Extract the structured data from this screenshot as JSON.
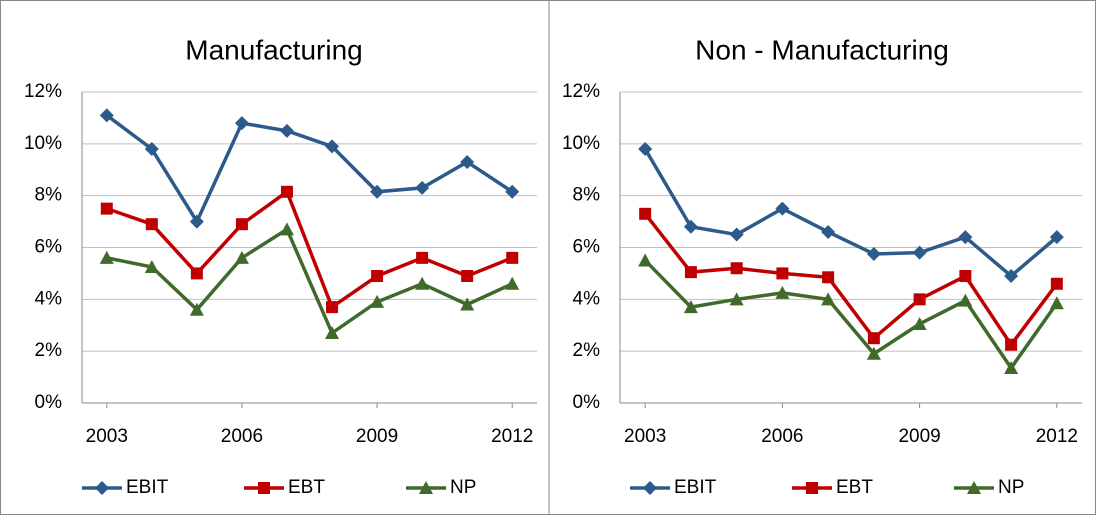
{
  "chart_data": [
    {
      "type": "line",
      "title": "Manufacturing",
      "x": [
        2003,
        2004,
        2005,
        2006,
        2007,
        2008,
        2009,
        2010,
        2011,
        2012
      ],
      "series": [
        {
          "name": "EBIT",
          "color": "#2c5a8b",
          "marker": "diamond",
          "values": [
            11.1,
            9.8,
            7.0,
            10.8,
            10.5,
            9.9,
            8.15,
            8.3,
            9.3,
            8.15
          ]
        },
        {
          "name": "EBT",
          "color": "#c00000",
          "marker": "square",
          "values": [
            7.5,
            6.9,
            5.0,
            6.9,
            8.15,
            3.7,
            4.9,
            5.6,
            4.9,
            5.6
          ]
        },
        {
          "name": "NP",
          "color": "#3f6a2a",
          "marker": "triangle",
          "values": [
            5.6,
            5.25,
            3.6,
            5.6,
            6.7,
            2.7,
            3.9,
            4.6,
            3.8,
            4.6
          ]
        }
      ],
      "xlim": [
        2002.45,
        2012.55
      ],
      "xticks": [
        2003,
        2006,
        2009,
        2012
      ],
      "ylim": [
        0,
        12
      ],
      "yticks": [
        {
          "value": 0,
          "label": "0%"
        },
        {
          "value": 2,
          "label": "2%"
        },
        {
          "value": 4,
          "label": "4%"
        },
        {
          "value": 6,
          "label": "6%"
        },
        {
          "value": 8,
          "label": "8%"
        },
        {
          "value": 10,
          "label": "10%"
        },
        {
          "value": 12,
          "label": "12%"
        }
      ],
      "grid": true,
      "legend": "bottom"
    },
    {
      "type": "line",
      "title": "Non - Manufacturing",
      "x": [
        2003,
        2004,
        2005,
        2006,
        2007,
        2008,
        2009,
        2010,
        2011,
        2012
      ],
      "series": [
        {
          "name": "EBIT",
          "color": "#2c5a8b",
          "marker": "diamond",
          "values": [
            9.8,
            6.8,
            6.5,
            7.5,
            6.6,
            5.75,
            5.8,
            6.4,
            4.9,
            6.4
          ]
        },
        {
          "name": "EBT",
          "color": "#c00000",
          "marker": "square",
          "values": [
            7.3,
            5.05,
            5.2,
            5.0,
            4.85,
            2.5,
            4.0,
            4.9,
            2.25,
            4.6
          ]
        },
        {
          "name": "NP",
          "color": "#3f6a2a",
          "marker": "triangle",
          "values": [
            5.5,
            3.7,
            4.0,
            4.25,
            4.0,
            1.9,
            3.05,
            3.95,
            1.35,
            3.85
          ]
        }
      ],
      "xlim": [
        2002.45,
        2012.55
      ],
      "xticks": [
        2003,
        2006,
        2009,
        2012
      ],
      "ylim": [
        0,
        12
      ],
      "yticks": [
        {
          "value": 0,
          "label": "0%"
        },
        {
          "value": 2,
          "label": "2%"
        },
        {
          "value": 4,
          "label": "4%"
        },
        {
          "value": 6,
          "label": "6%"
        },
        {
          "value": 8,
          "label": "8%"
        },
        {
          "value": 10,
          "label": "10%"
        },
        {
          "value": 12,
          "label": "12%"
        }
      ],
      "grid": true,
      "legend": "bottom"
    }
  ]
}
